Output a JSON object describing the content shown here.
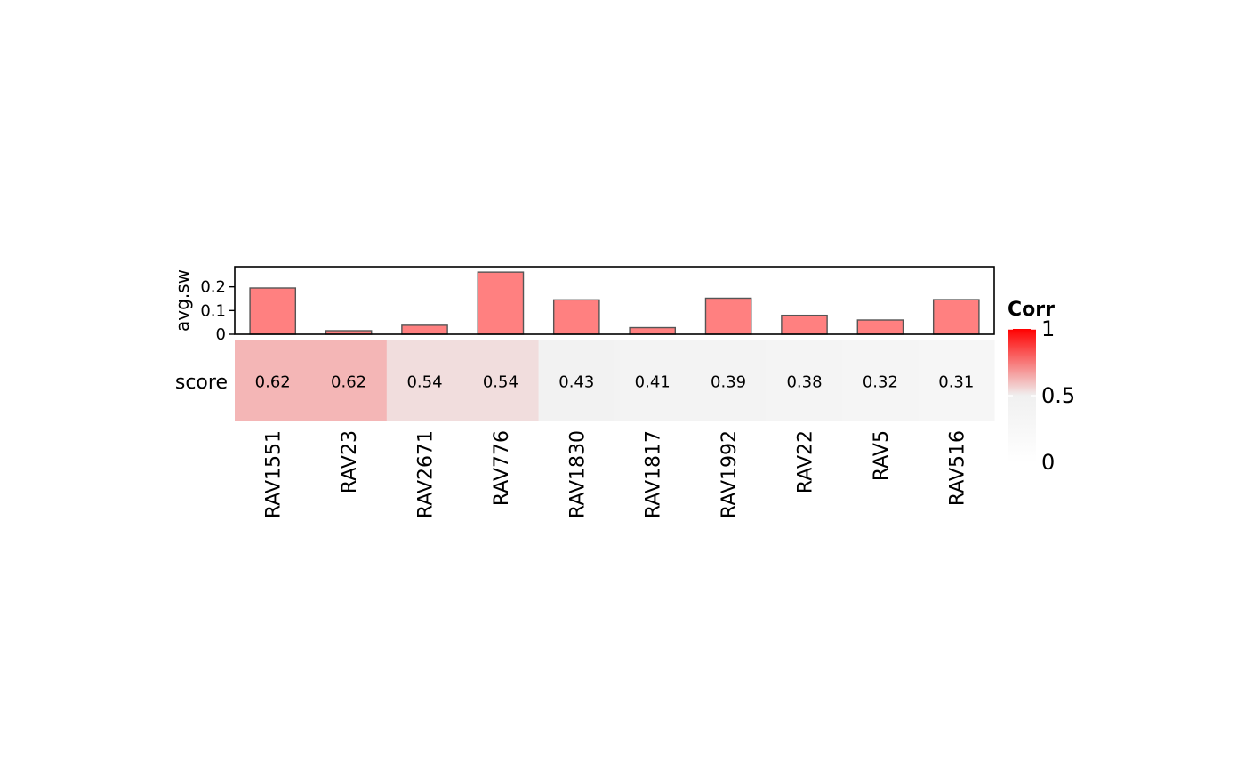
{
  "chart_data": [
    {
      "type": "bar",
      "ylabel": "avg.sw",
      "categories": [
        "RAV1551",
        "RAV23",
        "RAV2671",
        "RAV776",
        "RAV1830",
        "RAV1817",
        "RAV1992",
        "RAV22",
        "RAV5",
        "RAV516"
      ],
      "values": [
        0.195,
        0.015,
        0.038,
        0.262,
        0.145,
        0.028,
        0.152,
        0.08,
        0.06,
        0.146
      ],
      "yticks": [
        "0",
        "0.1",
        "0.2"
      ],
      "ylim": [
        0,
        0.27
      ],
      "bar_color": "#ff8080",
      "bar_stroke": "#555555"
    },
    {
      "type": "heatmap",
      "row_label": "score",
      "categories": [
        "RAV1551",
        "RAV23",
        "RAV2671",
        "RAV776",
        "RAV1830",
        "RAV1817",
        "RAV1992",
        "RAV22",
        "RAV5",
        "RAV516"
      ],
      "values": [
        0.62,
        0.62,
        0.54,
        0.54,
        0.43,
        0.41,
        0.39,
        0.38,
        0.32,
        0.31
      ],
      "cell_labels": [
        "0.62",
        "0.62",
        "0.54",
        "0.54",
        "0.43",
        "0.41",
        "0.39",
        "0.38",
        "0.32",
        "0.31"
      ],
      "legend": {
        "title": "Corr",
        "ticks": [
          "1",
          "0.5",
          "0"
        ],
        "range": [
          0,
          1
        ],
        "colors": {
          "low": "#ffffff",
          "mid": "#f0f0f0",
          "high": "#ff0000"
        }
      }
    }
  ]
}
